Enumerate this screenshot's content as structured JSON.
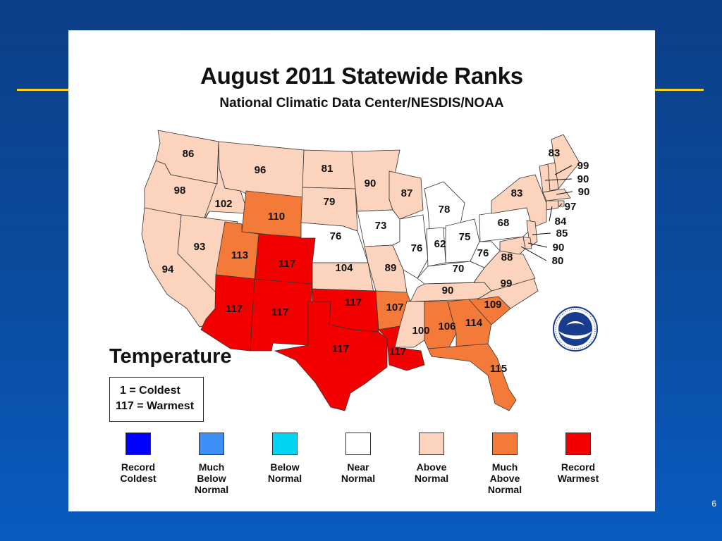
{
  "slide": {
    "page_number": "6",
    "accent_color": "#f2d21c"
  },
  "map": {
    "title": "August 2011 Statewide Ranks",
    "subtitle": "National Climatic Data Center/NESDIS/NOAA",
    "legend_heading": "Temperature",
    "scale_note_1": "1 = Coldest",
    "scale_note_2": "117 = Warmest",
    "categories": {
      "record_coldest": {
        "label": [
          "Record",
          "Coldest"
        ],
        "color": "#0000ff"
      },
      "much_below_normal": {
        "label": [
          "Much",
          "Below",
          "Normal"
        ],
        "color": "#3d8ef5"
      },
      "below_normal": {
        "label": [
          "Below",
          "Normal"
        ],
        "color": "#00d4f4"
      },
      "near_normal": {
        "label": [
          "Near",
          "Normal"
        ],
        "color": "#ffffff"
      },
      "above_normal": {
        "label": [
          "Above",
          "Normal"
        ],
        "color": "#fcd3bd"
      },
      "much_above_normal": {
        "label": [
          "Much",
          "Above",
          "Normal"
        ],
        "color": "#f47a3a"
      },
      "record_warmest": {
        "label": [
          "Record",
          "Warmest"
        ],
        "color": "#f50000"
      }
    },
    "legend_order": [
      "record_coldest",
      "much_below_normal",
      "below_normal",
      "near_normal",
      "above_normal",
      "much_above_normal",
      "record_warmest"
    ],
    "state_ranks": {
      "WA": {
        "rank": 86,
        "category": "above_normal"
      },
      "OR": {
        "rank": 98,
        "category": "above_normal"
      },
      "CA": {
        "rank": 94,
        "category": "above_normal"
      },
      "ID": {
        "rank": 102,
        "category": "above_normal"
      },
      "NV": {
        "rank": 93,
        "category": "above_normal"
      },
      "MT": {
        "rank": 96,
        "category": "above_normal"
      },
      "WY": {
        "rank": 110,
        "category": "much_above_normal"
      },
      "UT": {
        "rank": 113,
        "category": "much_above_normal"
      },
      "CO": {
        "rank": 117,
        "category": "record_warmest"
      },
      "AZ": {
        "rank": 117,
        "category": "record_warmest"
      },
      "NM": {
        "rank": 117,
        "category": "record_warmest"
      },
      "ND": {
        "rank": 81,
        "category": "above_normal"
      },
      "SD": {
        "rank": 79,
        "category": "above_normal"
      },
      "NE": {
        "rank": 76,
        "category": "near_normal"
      },
      "KS": {
        "rank": 104,
        "category": "above_normal"
      },
      "OK": {
        "rank": 117,
        "category": "record_warmest"
      },
      "TX": {
        "rank": 117,
        "category": "record_warmest"
      },
      "MN": {
        "rank": 90,
        "category": "above_normal"
      },
      "IA": {
        "rank": 73,
        "category": "near_normal"
      },
      "MO": {
        "rank": 89,
        "category": "above_normal"
      },
      "AR": {
        "rank": 107,
        "category": "much_above_normal"
      },
      "LA": {
        "rank": 117,
        "category": "record_warmest"
      },
      "WI": {
        "rank": 87,
        "category": "above_normal"
      },
      "IL": {
        "rank": 76,
        "category": "near_normal"
      },
      "MI": {
        "rank": 78,
        "category": "near_normal"
      },
      "IN": {
        "rank": 62,
        "category": "near_normal"
      },
      "OH": {
        "rank": 75,
        "category": "near_normal"
      },
      "KY": {
        "rank": 70,
        "category": "near_normal"
      },
      "TN": {
        "rank": 90,
        "category": "above_normal"
      },
      "MS": {
        "rank": 100,
        "category": "above_normal"
      },
      "AL": {
        "rank": 106,
        "category": "much_above_normal"
      },
      "GA": {
        "rank": 114,
        "category": "much_above_normal"
      },
      "FL": {
        "rank": 115,
        "category": "much_above_normal"
      },
      "SC": {
        "rank": 109,
        "category": "much_above_normal"
      },
      "NC": {
        "rank": 99,
        "category": "above_normal"
      },
      "VA": {
        "rank": 88,
        "category": "above_normal"
      },
      "WV": {
        "rank": 76,
        "category": "near_normal"
      },
      "PA": {
        "rank": 68,
        "category": "near_normal"
      },
      "NY": {
        "rank": 83,
        "category": "above_normal"
      },
      "ME": {
        "rank": 83,
        "category": "above_normal"
      },
      "NH": {
        "rank": 99,
        "category": "above_normal"
      },
      "VT": {
        "rank": 90,
        "category": "above_normal"
      },
      "MA": {
        "rank": 90,
        "category": "above_normal"
      },
      "RI": {
        "rank": 97,
        "category": "above_normal"
      },
      "CT": {
        "rank": 84,
        "category": "above_normal"
      },
      "NJ": {
        "rank": 85,
        "category": "above_normal"
      },
      "DE": {
        "rank": 90,
        "category": "above_normal"
      },
      "MD": {
        "rank": 80,
        "category": "above_normal"
      }
    }
  }
}
